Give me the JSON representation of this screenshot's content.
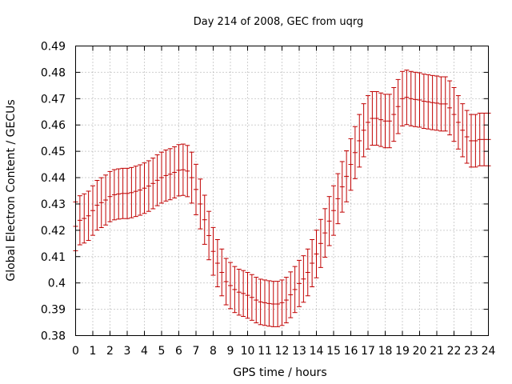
{
  "chart_data": {
    "type": "errorbar",
    "title": "Day 214 of 2008, GEC from uqrg",
    "xlabel": "GPS time / hours",
    "ylabel": "Global Electron Content / GECUs",
    "xlim": [
      0,
      24
    ],
    "ylim": [
      0.38,
      0.49
    ],
    "xticks": [
      "0",
      "1",
      "2",
      "3",
      "4",
      "5",
      "6",
      "7",
      "8",
      "9",
      "10",
      "11",
      "12",
      "13",
      "14",
      "15",
      "16",
      "17",
      "18",
      "19",
      "20",
      "21",
      "22",
      "23",
      "24"
    ],
    "yticks": [
      "0.38",
      "0.39",
      "0.4",
      "0.41",
      "0.42",
      "0.43",
      "0.44",
      "0.45",
      "0.46",
      "0.47",
      "0.48",
      "0.49"
    ],
    "grid": true,
    "color": "#c00000",
    "error_fraction": 0.022,
    "x": [
      0,
      0.25,
      0.5,
      0.75,
      1,
      1.25,
      1.5,
      1.75,
      2,
      2.25,
      2.5,
      2.75,
      3,
      3.25,
      3.5,
      3.75,
      4,
      4.25,
      4.5,
      4.75,
      5,
      5.25,
      5.5,
      5.75,
      6,
      6.25,
      6.5,
      6.75,
      7,
      7.25,
      7.5,
      7.75,
      8,
      8.25,
      8.5,
      8.75,
      9,
      9.25,
      9.5,
      9.75,
      10,
      10.25,
      10.5,
      10.75,
      11,
      11.25,
      11.5,
      11.75,
      12,
      12.25,
      12.5,
      12.75,
      13,
      13.25,
      13.5,
      13.75,
      14,
      14.25,
      14.5,
      14.75,
      15,
      15.25,
      15.5,
      15.75,
      16,
      16.25,
      16.5,
      16.75,
      17,
      17.25,
      17.5,
      17.75,
      18,
      18.25,
      18.5,
      18.75,
      19,
      19.25,
      19.5,
      19.75,
      20,
      20.25,
      20.5,
      20.75,
      21,
      21.25,
      21.5,
      21.75,
      22,
      22.25,
      22.5,
      22.75,
      23,
      23.25,
      23.5,
      23.75,
      24
    ],
    "y": [
      0.4215,
      0.4238,
      0.4245,
      0.4255,
      0.4275,
      0.4295,
      0.4305,
      0.4315,
      0.4328,
      0.4335,
      0.4338,
      0.434,
      0.434,
      0.4343,
      0.4348,
      0.4353,
      0.436,
      0.4368,
      0.4378,
      0.439,
      0.44,
      0.4408,
      0.4413,
      0.442,
      0.4428,
      0.443,
      0.4425,
      0.44,
      0.4355,
      0.43,
      0.424,
      0.418,
      0.412,
      0.4075,
      0.404,
      0.4005,
      0.399,
      0.3975,
      0.3965,
      0.396,
      0.3953,
      0.3945,
      0.3935,
      0.3928,
      0.3925,
      0.3922,
      0.392,
      0.392,
      0.3925,
      0.3935,
      0.3955,
      0.3975,
      0.3998,
      0.4015,
      0.404,
      0.4075,
      0.411,
      0.415,
      0.419,
      0.4235,
      0.4275,
      0.432,
      0.4365,
      0.4405,
      0.445,
      0.4495,
      0.454,
      0.458,
      0.461,
      0.4625,
      0.4625,
      0.462,
      0.4615,
      0.4615,
      0.464,
      0.467,
      0.47,
      0.4705,
      0.47,
      0.4697,
      0.4695,
      0.469,
      0.4688,
      0.4685,
      0.4683,
      0.468,
      0.468,
      0.4665,
      0.464,
      0.461,
      0.458,
      0.4555,
      0.454,
      0.454,
      0.4545,
      0.4545,
      0.4545
    ]
  }
}
